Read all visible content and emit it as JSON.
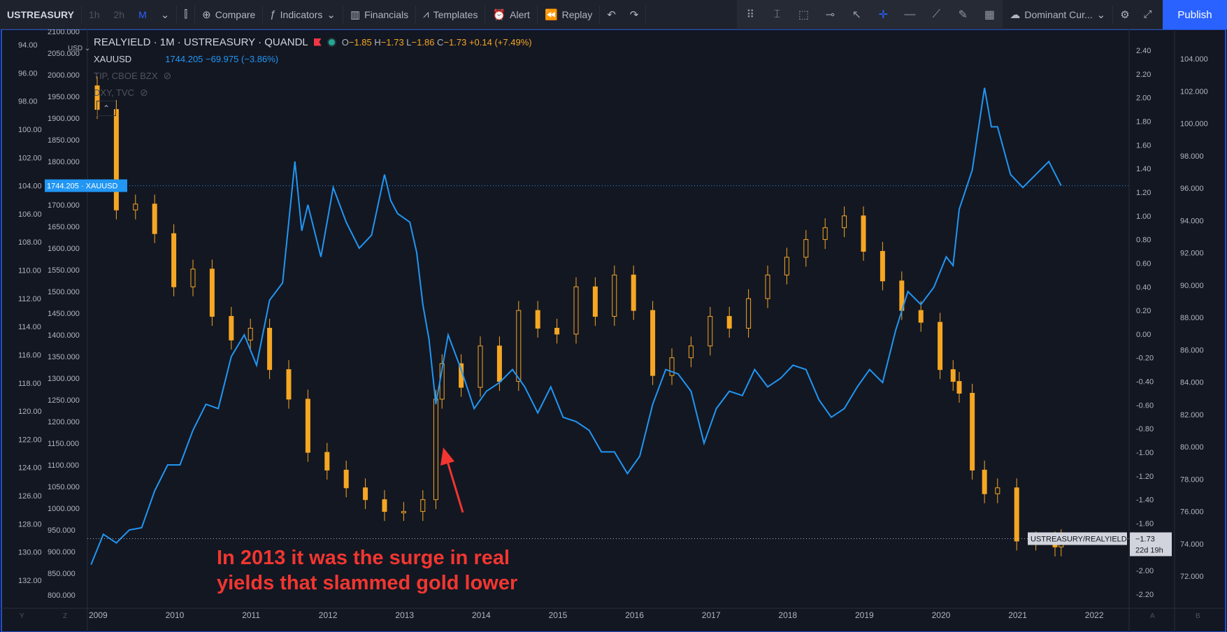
{
  "toolbar": {
    "symbol": "USTREASURY",
    "intervals": [
      "1h",
      "2h",
      "M"
    ],
    "compare": "Compare",
    "indicators": "Indicators",
    "financials": "Financials",
    "templates": "Templates",
    "alert": "Alert",
    "replay": "Replay",
    "dominant": "Dominant Cur...",
    "publish": "Publish"
  },
  "legend": {
    "title": "REALYIELD · 1M · USTREASURY · QUANDL",
    "ohlc": {
      "o": "−1.85",
      "h": "−1.73",
      "l": "−1.86",
      "c": "−1.73",
      "chg": "+0.14 (+7.49%)"
    },
    "xauusd_name": "XAUUSD",
    "xauusd_value": "1744.205  −69.975 (−3.86%)",
    "tip": "TIP, CBOE BZX",
    "dxy": "DXY, TVC"
  },
  "annotation": {
    "line1": "In 2013 it was the surge in real",
    "line2": "yields that slammed gold lower",
    "color": "#f23630"
  },
  "colors": {
    "background": "#131722",
    "candles": "#f5a623",
    "gold_line": "#2196f3",
    "accent": "#2962ff"
  },
  "chart_data": {
    "type": "line",
    "x_ticks": [
      "2009",
      "2010",
      "2011",
      "2012",
      "2013",
      "2014",
      "2015",
      "2016",
      "2017",
      "2018",
      "2019",
      "2020",
      "2021",
      "2022"
    ],
    "axes": {
      "dxy_inverted": {
        "ticks": [
          "94.00",
          "96.00",
          "98.00",
          "100.00",
          "102.00",
          "104.00",
          "106.00",
          "108.00",
          "110.00",
          "112.00",
          "114.00",
          "116.00",
          "118.00",
          "120.00",
          "122.00",
          "124.00",
          "126.00",
          "128.00",
          "130.00",
          "132.00"
        ],
        "range": [
          94,
          133
        ]
      },
      "xauusd": {
        "currency": "USD",
        "ticks": [
          "2100.000",
          "2050.000",
          "2000.000",
          "1950.000",
          "1900.000",
          "1850.000",
          "1800.000",
          "1750.000",
          "1700.000",
          "1650.000",
          "1600.000",
          "1550.000",
          "1500.000",
          "1450.000",
          "1400.000",
          "1350.000",
          "1300.000",
          "1250.000",
          "1200.000",
          "1150.000",
          "1100.000",
          "1050.000",
          "1000.000",
          "950.000",
          "900.000",
          "850.000",
          "800.000"
        ],
        "range": [
          775,
          2110
        ]
      },
      "realyield": {
        "ticks": [
          "2.40",
          "2.20",
          "2.00",
          "1.80",
          "1.60",
          "1.40",
          "1.20",
          "1.00",
          "0.80",
          "0.60",
          "0.40",
          "0.20",
          "0.00",
          "-0.20",
          "-0.40",
          "-0.60",
          "-0.80",
          "-1.00",
          "-1.20",
          "-1.40",
          "-1.60",
          "-1.80",
          "-2.00",
          "-2.20"
        ],
        "range": [
          -2.35,
          2.6
        ]
      },
      "tip": {
        "ticks": [
          "104.000",
          "102.000",
          "100.000",
          "98.000",
          "96.000",
          "94.000",
          "92.000",
          "90.000",
          "88.000",
          "86.000",
          "84.000",
          "82.000",
          "80.000",
          "78.000",
          "76.000",
          "74.000",
          "72.000"
        ],
        "range": [
          70.7,
          105.5
        ]
      }
    },
    "current_labels": {
      "xauusd": "1744.205",
      "xauusd_tag": "XAUUSD",
      "realyield_tag": "USTREASURY/REALYIELD",
      "realyield": "−1.73",
      "countdown": "22d 19h"
    },
    "bottom_axis_buttons": [
      "Y",
      "Z",
      "A",
      "B"
    ],
    "series": [
      {
        "name": "XAUUSD",
        "axis": "xauusd",
        "color": "#2196f3",
        "x": [
          2008.92,
          2009.08,
          2009.25,
          2009.42,
          2009.58,
          2009.75,
          2009.92,
          2010.08,
          2010.25,
          2010.42,
          2010.58,
          2010.75,
          2010.92,
          2011.08,
          2011.25,
          2011.42,
          2011.58,
          2011.67,
          2011.75,
          2011.92,
          2012.08,
          2012.25,
          2012.42,
          2012.58,
          2012.75,
          2012.83,
          2012.92,
          2013.08,
          2013.17,
          2013.25,
          2013.33,
          2013.42,
          2013.5,
          2013.58,
          2013.75,
          2013.92,
          2014.08,
          2014.25,
          2014.42,
          2014.58,
          2014.75,
          2014.92,
          2015.08,
          2015.25,
          2015.42,
          2015.58,
          2015.75,
          2015.92,
          2016.08,
          2016.25,
          2016.42,
          2016.58,
          2016.75,
          2016.92,
          2017.08,
          2017.25,
          2017.42,
          2017.58,
          2017.75,
          2017.92,
          2018.08,
          2018.25,
          2018.42,
          2018.58,
          2018.75,
          2018.92,
          2019.08,
          2019.25,
          2019.42,
          2019.58,
          2019.75,
          2019.92,
          2020.08,
          2020.17,
          2020.25,
          2020.42,
          2020.58,
          2020.67,
          2020.75,
          2020.92,
          2021.08,
          2021.25,
          2021.42,
          2021.58
        ],
        "values": [
          870,
          940,
          920,
          950,
          955,
          1040,
          1100,
          1100,
          1180,
          1240,
          1230,
          1350,
          1400,
          1330,
          1480,
          1520,
          1800,
          1640,
          1700,
          1580,
          1740,
          1660,
          1600,
          1630,
          1770,
          1710,
          1680,
          1660,
          1590,
          1470,
          1390,
          1240,
          1320,
          1400,
          1320,
          1230,
          1270,
          1290,
          1320,
          1280,
          1220,
          1280,
          1210,
          1200,
          1180,
          1130,
          1130,
          1080,
          1120,
          1240,
          1320,
          1310,
          1270,
          1150,
          1230,
          1270,
          1260,
          1320,
          1280,
          1300,
          1330,
          1320,
          1250,
          1210,
          1230,
          1280,
          1320,
          1290,
          1410,
          1500,
          1470,
          1510,
          1580,
          1560,
          1690,
          1780,
          1970,
          1880,
          1880,
          1770,
          1740,
          1770,
          1800,
          1744
        ]
      },
      {
        "name": "USTREASURY/REALYIELD",
        "axis": "realyield",
        "type": "candlestick",
        "color": "#f5a623",
        "x": [
          2009.0,
          2009.25,
          2009.5,
          2009.75,
          2010.0,
          2010.25,
          2010.5,
          2010.75,
          2011.0,
          2011.25,
          2011.5,
          2011.75,
          2012.0,
          2012.25,
          2012.5,
          2012.75,
          2013.0,
          2013.25,
          2013.42,
          2013.5,
          2013.75,
          2014.0,
          2014.25,
          2014.5,
          2014.75,
          2015.0,
          2015.25,
          2015.5,
          2015.75,
          2016.0,
          2016.25,
          2016.5,
          2016.75,
          2017.0,
          2017.25,
          2017.5,
          2017.75,
          2018.0,
          2018.25,
          2018.5,
          2018.75,
          2019.0,
          2019.25,
          2019.5,
          2019.75,
          2020.0,
          2020.17,
          2020.25,
          2020.42,
          2020.58,
          2020.75,
          2021.0,
          2021.25,
          2021.5,
          2021.58
        ],
        "values": [
          1.9,
          1.05,
          1.1,
          0.85,
          0.4,
          0.55,
          0.15,
          -0.05,
          0.05,
          -0.3,
          -0.55,
          -1.0,
          -1.15,
          -1.3,
          -1.4,
          -1.5,
          -1.5,
          -1.4,
          -0.55,
          -0.25,
          -0.45,
          -0.1,
          -0.4,
          0.2,
          0.05,
          0.0,
          0.4,
          0.15,
          0.5,
          0.2,
          -0.35,
          -0.2,
          -0.1,
          0.15,
          0.05,
          0.3,
          0.5,
          0.65,
          0.8,
          0.9,
          1.0,
          0.7,
          0.45,
          0.2,
          0.1,
          -0.3,
          -0.4,
          -0.5,
          -1.15,
          -1.35,
          -1.3,
          -1.75,
          -1.75,
          -1.8,
          -1.73
        ]
      }
    ]
  }
}
